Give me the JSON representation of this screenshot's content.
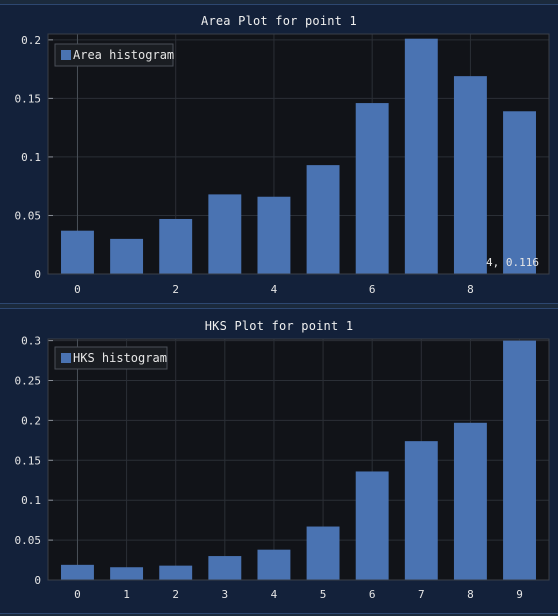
{
  "colors": {
    "background": "#1b2a3c",
    "plot_background": "#111318",
    "bar": "#4a73b2",
    "grid": "#2b2f36"
  },
  "chart_data": [
    {
      "type": "bar",
      "title": "Area Plot for point 1",
      "legend": "Area histogram",
      "legend_position": "top-left",
      "x": [
        0,
        1,
        2,
        3,
        4,
        5,
        6,
        7,
        8,
        9
      ],
      "values": [
        0.037,
        0.03,
        0.047,
        0.068,
        0.066,
        0.093,
        0.146,
        0.201,
        0.169,
        0.139
      ],
      "xlim": [
        -0.6,
        9.6
      ],
      "ylim": [
        0,
        0.205
      ],
      "xticks": [
        "0",
        "2",
        "4",
        "6",
        "8"
      ],
      "yticks": [
        "0",
        "0.05",
        "0.1",
        "0.15",
        "0.2"
      ],
      "grid": true,
      "mouse_readout": "4, 0.116"
    },
    {
      "type": "bar",
      "title": "HKS Plot for point 1",
      "legend": "HKS histogram",
      "legend_position": "top-left",
      "x": [
        0,
        1,
        2,
        3,
        4,
        5,
        6,
        7,
        8,
        9
      ],
      "values": [
        0.019,
        0.016,
        0.018,
        0.03,
        0.038,
        0.067,
        0.136,
        0.174,
        0.197,
        0.3
      ],
      "xlim": [
        -0.6,
        9.6
      ],
      "ylim": [
        0,
        0.302
      ],
      "xticks": [
        "0",
        "1",
        "2",
        "3",
        "4",
        "5",
        "6",
        "7",
        "8",
        "9"
      ],
      "yticks": [
        "0",
        "0.05",
        "0.1",
        "0.15",
        "0.2",
        "0.25",
        "0.3"
      ],
      "grid": true
    }
  ]
}
